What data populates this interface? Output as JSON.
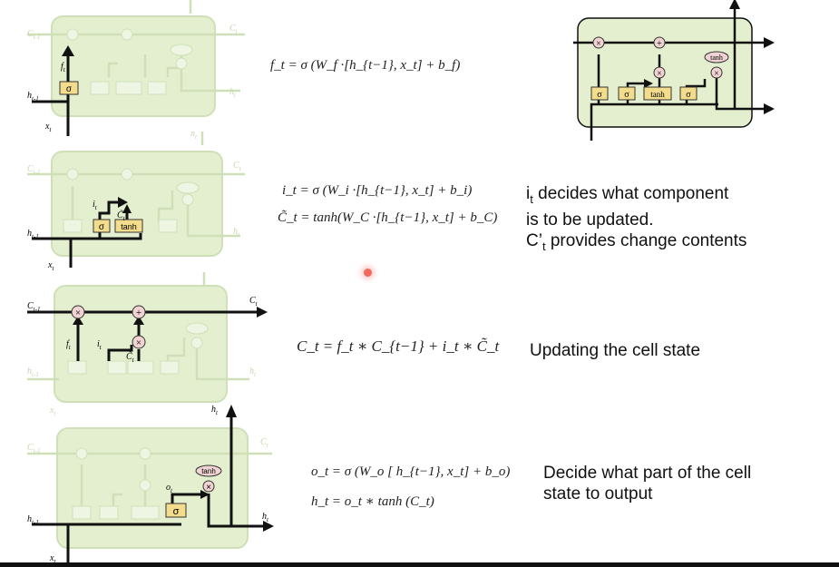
{
  "diagram": {
    "gates": {
      "sigma": "σ",
      "tanh": "tanh",
      "mul": "×",
      "add": "+"
    },
    "labels": {
      "c_prev": "C_{t-1}",
      "c_t": "C_t",
      "h_prev": "h_{t-1}",
      "h_t": "h_t",
      "x_t": "x_t",
      "f_t": "f_t",
      "i_t": "i_t",
      "c_tilde": "C̃_t",
      "o_t": "o_t"
    }
  },
  "rows": [
    {
      "equations": [
        "f_t = σ (W_f ·[h_{t−1}, x_t]  +  b_f)"
      ],
      "note": ""
    },
    {
      "equations": [
        "i_t = σ (W_i ·[h_{t−1}, x_t]  +  b_i)",
        "C̃_t = tanh(W_C ·[h_{t−1}, x_t]  +  b_C)"
      ],
      "note_lines": [
        "i",
        "t",
        " decides what component",
        "is to be updated.",
        "C’",
        "t",
        " provides change contents"
      ]
    },
    {
      "equations": [
        "C_t = f_t ∗ C_{t−1} + i_t ∗ C̃_t"
      ],
      "note": "Updating the cell state"
    },
    {
      "equations": [
        "o_t = σ (W_o  [ h_{t−1}, x_t]  +  b_o)",
        "h_t = o_t ∗ tanh (C_t)"
      ],
      "note_lines": [
        "Decide what part of the cell",
        "state to output"
      ]
    }
  ],
  "colors": {
    "cell": "#e4efcf",
    "cell_border": "#a9c98a",
    "gate": "#f3dc8b",
    "op": "#f2d3d3",
    "faded_line": "#cfe0b8"
  }
}
